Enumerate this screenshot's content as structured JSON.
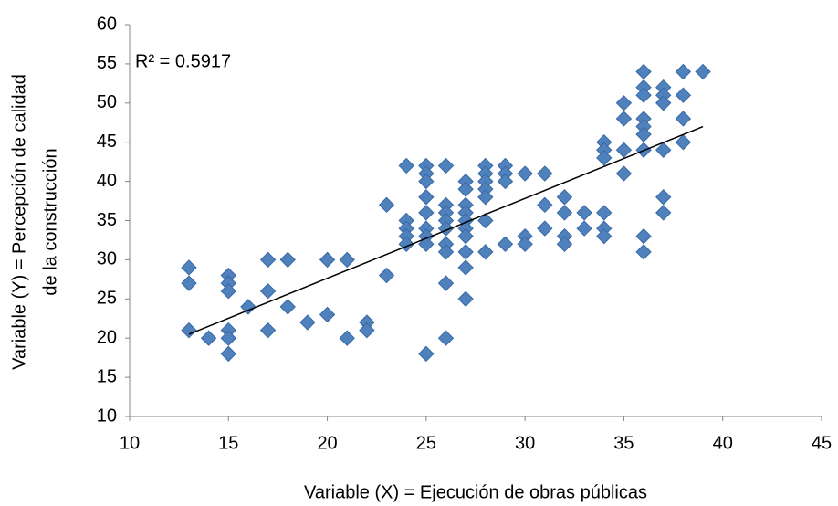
{
  "chart_data": {
    "type": "scatter",
    "x_label": "Variable (X) = Ejecución de obras públicas",
    "y_label": [
      "Variable (Y) = Percepción de calidad",
      "de la construcción"
    ],
    "annotation": "R² = 0.5917",
    "xlim": [
      10,
      45
    ],
    "xticks": [
      10,
      15,
      20,
      25,
      30,
      35,
      40,
      45
    ],
    "ylim": [
      10,
      60
    ],
    "yticks": [
      10,
      15,
      20,
      25,
      30,
      35,
      40,
      45,
      50,
      55,
      60
    ],
    "grid": false,
    "series": [
      {
        "color": "#4f81bd",
        "x": [
          13,
          13,
          13,
          14,
          15,
          15,
          15,
          15,
          15,
          15,
          16,
          17,
          17,
          17,
          18,
          18,
          19,
          20,
          20,
          21,
          21,
          22,
          22,
          23,
          23,
          24,
          24,
          24,
          24,
          24,
          25,
          25,
          25,
          25,
          25,
          25,
          25,
          25,
          25,
          26,
          26,
          26,
          26,
          26,
          26,
          26,
          26,
          26,
          27,
          27,
          27,
          27,
          27,
          27,
          27,
          27,
          27,
          27,
          28,
          28,
          28,
          28,
          28,
          28,
          28,
          29,
          29,
          29,
          29,
          30,
          30,
          30,
          31,
          31,
          31,
          32,
          32,
          32,
          32,
          33,
          33,
          34,
          34,
          34,
          34,
          34,
          34,
          35,
          35,
          35,
          35,
          36,
          36,
          36,
          36,
          36,
          36,
          36,
          36,
          36,
          37,
          37,
          37,
          37,
          37,
          37,
          38,
          38,
          38,
          38,
          39
        ],
        "values": [
          29,
          27,
          21,
          20,
          28,
          27,
          26,
          21,
          20,
          18,
          24,
          30,
          26,
          21,
          30,
          24,
          22,
          30,
          23,
          30,
          20,
          22,
          21,
          37,
          28,
          42,
          35,
          34,
          33,
          32,
          42,
          41,
          40,
          38,
          36,
          34,
          33,
          32,
          18,
          42,
          37,
          36,
          35,
          34,
          32,
          31,
          27,
          20,
          40,
          39,
          37,
          36,
          35,
          34,
          33,
          31,
          29,
          25,
          42,
          41,
          40,
          39,
          38,
          35,
          31,
          42,
          41,
          40,
          32,
          41,
          33,
          32,
          41,
          37,
          34,
          38,
          36,
          33,
          32,
          36,
          34,
          45,
          44,
          43,
          36,
          34,
          33,
          50,
          48,
          44,
          41,
          54,
          52,
          51,
          48,
          47,
          46,
          44,
          33,
          31,
          52,
          51,
          50,
          44,
          38,
          36,
          54,
          51,
          48,
          45,
          54
        ]
      }
    ],
    "trendline": {
      "color": "#000000",
      "x": [
        13,
        39
      ],
      "values": [
        20.5,
        47
      ]
    }
  }
}
